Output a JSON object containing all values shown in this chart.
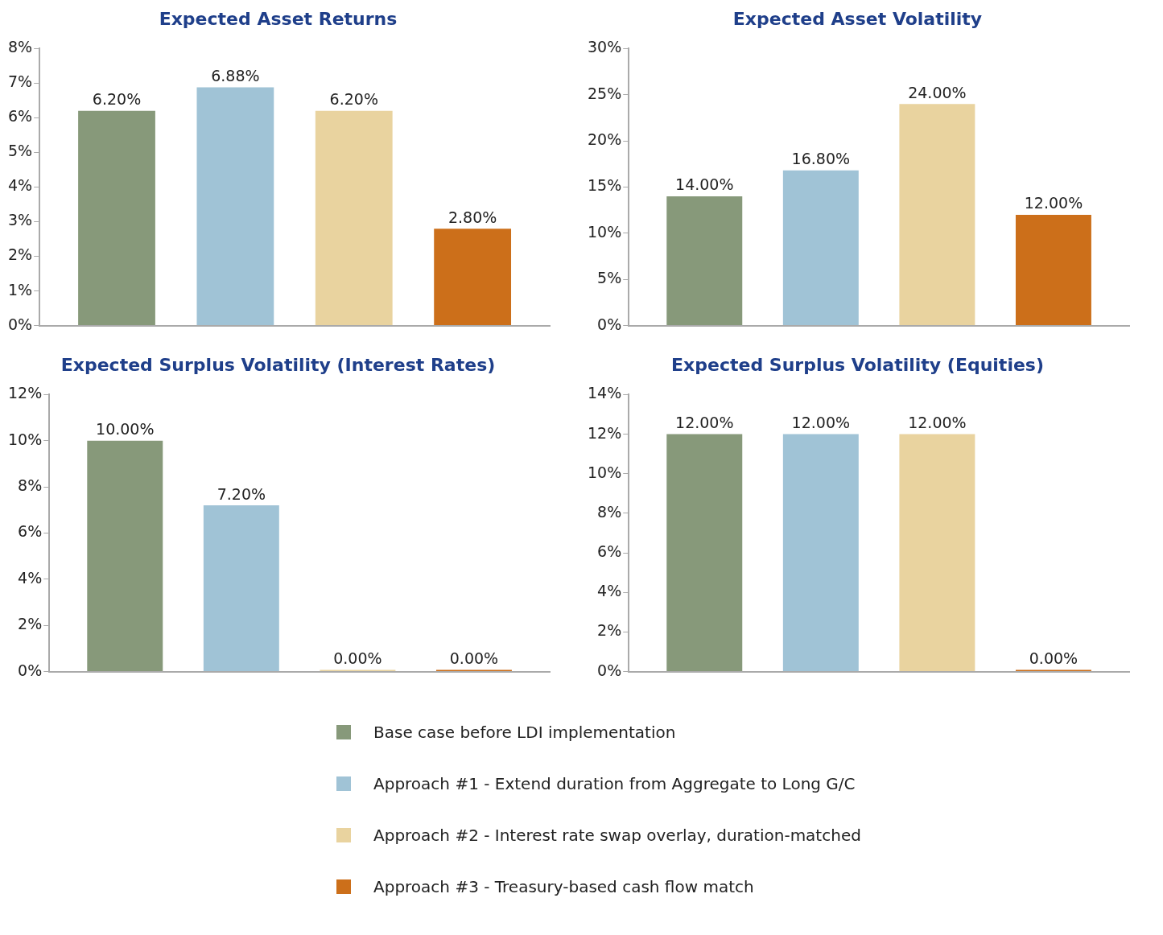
{
  "chart_data": [
    {
      "type": "bar",
      "title": "Expected Asset Returns",
      "categories": [
        null
      ],
      "ylim": [
        0,
        8
      ],
      "yticks": [
        {
          "value": 0,
          "label": "0%"
        },
        {
          "value": 1,
          "label": "1%"
        },
        {
          "value": 2,
          "label": "2%"
        },
        {
          "value": 3,
          "label": "3%"
        },
        {
          "value": 4,
          "label": "4%"
        },
        {
          "value": 5,
          "label": "5%"
        },
        {
          "value": 6,
          "label": "6%"
        },
        {
          "value": 7,
          "label": "7%"
        },
        {
          "value": 8,
          "label": "8%"
        }
      ],
      "grid": false,
      "legend": "bottom",
      "series": [
        {
          "name": "Base case before LDI implementation",
          "color": "#87997a",
          "values": [
            6.2
          ],
          "value_labels": [
            "6.20%"
          ]
        },
        {
          "name": "Approach #1 - Extend duration from Aggregate to Long G/C",
          "color": "#a0c3d6",
          "values": [
            6.88
          ],
          "value_labels": [
            "6.88%"
          ]
        },
        {
          "name": "Approach #2 - Interest rate swap overlay, duration-matched",
          "color": "#e9d39f",
          "values": [
            6.2
          ],
          "value_labels": [
            "6.20%"
          ]
        },
        {
          "name": "Approach #3 - Treasury-based cash flow match",
          "color": "#cc6f1a",
          "values": [
            2.8
          ],
          "value_labels": [
            "2.80%"
          ]
        }
      ]
    },
    {
      "type": "bar",
      "title": "Expected Asset Volatility",
      "categories": [
        null
      ],
      "ylim": [
        0,
        30
      ],
      "yticks": [
        {
          "value": 0,
          "label": "0%"
        },
        {
          "value": 5,
          "label": "5%"
        },
        {
          "value": 10,
          "label": "10%"
        },
        {
          "value": 15,
          "label": "15%"
        },
        {
          "value": 20,
          "label": "20%"
        },
        {
          "value": 25,
          "label": "25%"
        },
        {
          "value": 30,
          "label": "30%"
        }
      ],
      "grid": false,
      "series": [
        {
          "color": "#87997a",
          "values": [
            14
          ],
          "value_labels": [
            "14.00%"
          ]
        },
        {
          "color": "#a0c3d6",
          "values": [
            16.8
          ],
          "value_labels": [
            "16.80%"
          ]
        },
        {
          "color": "#e9d39f",
          "values": [
            24
          ],
          "value_labels": [
            "24.00%"
          ]
        },
        {
          "color": "#cc6f1a",
          "values": [
            12
          ],
          "value_labels": [
            "12.00%"
          ]
        }
      ]
    },
    {
      "type": "bar",
      "title": "Expected Surplus Volatility (Interest Rates)",
      "categories": [
        null
      ],
      "ylim": [
        0,
        12
      ],
      "yticks": [
        {
          "value": 0,
          "label": "0%"
        },
        {
          "value": 2,
          "label": "2%"
        },
        {
          "value": 4,
          "label": "4%"
        },
        {
          "value": 6,
          "label": "6%"
        },
        {
          "value": 8,
          "label": "8%"
        },
        {
          "value": 10,
          "label": "10%"
        },
        {
          "value": 12,
          "label": "12%"
        }
      ],
      "grid": false,
      "series": [
        {
          "color": "#87997a",
          "values": [
            10
          ],
          "value_labels": [
            "10.00%"
          ]
        },
        {
          "color": "#a0c3d6",
          "values": [
            7.2
          ],
          "value_labels": [
            "7.20%"
          ]
        },
        {
          "color": "#e9d39f",
          "values": [
            0
          ],
          "value_labels": [
            "0.00%"
          ]
        },
        {
          "color": "#cc6f1a",
          "values": [
            0
          ],
          "value_labels": [
            "0.00%"
          ]
        }
      ]
    },
    {
      "type": "bar",
      "title": "Expected Surplus Volatility (Equities)",
      "categories": [
        null
      ],
      "ylim": [
        0,
        14
      ],
      "yticks": [
        {
          "value": 0,
          "label": "0%"
        },
        {
          "value": 2,
          "label": "2%"
        },
        {
          "value": 4,
          "label": "4%"
        },
        {
          "value": 6,
          "label": "6%"
        },
        {
          "value": 8,
          "label": "8%"
        },
        {
          "value": 10,
          "label": "10%"
        },
        {
          "value": 12,
          "label": "12%"
        },
        {
          "value": 14,
          "label": "14%"
        }
      ],
      "grid": false,
      "series": [
        {
          "color": "#87997a",
          "values": [
            12
          ],
          "value_labels": [
            "12.00%"
          ]
        },
        {
          "color": "#a0c3d6",
          "values": [
            12
          ],
          "value_labels": [
            "12.00%"
          ]
        },
        {
          "color": "#e9d39f",
          "values": [
            12
          ],
          "value_labels": [
            "12.00%"
          ]
        },
        {
          "color": "#cc6f1a",
          "values": [
            0
          ],
          "value_labels": [
            "0.00%"
          ]
        }
      ]
    }
  ]
}
